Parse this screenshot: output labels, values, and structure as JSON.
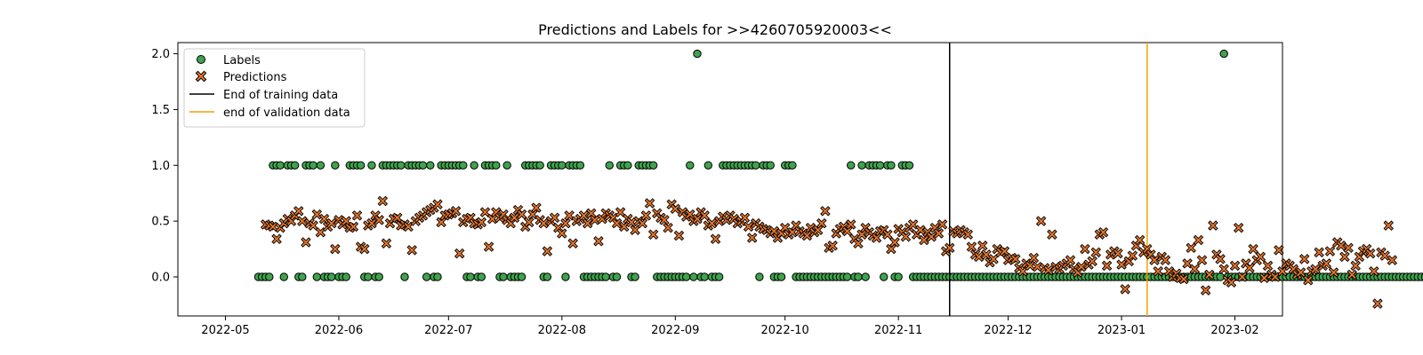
{
  "chart_data": {
    "type": "scatter",
    "title": "Predictions and Labels for >>4260705920003<<",
    "xlabel": "",
    "ylabel": "",
    "x_range": [
      "2022-04-18",
      "2023-02-14"
    ],
    "ylim": [
      -0.35,
      2.1
    ],
    "x_ticks": [
      "2022-05",
      "2022-06",
      "2022-07",
      "2022-08",
      "2022-09",
      "2022-10",
      "2022-11",
      "2022-12",
      "2023-01",
      "2023-02"
    ],
    "x_tick_dates": [
      "2022-05-01",
      "2022-06-01",
      "2022-07-01",
      "2022-08-01",
      "2022-09-01",
      "2022-10-01",
      "2022-11-01",
      "2022-12-01",
      "2023-01-01",
      "2023-02-01"
    ],
    "y_ticks": [
      "0.0",
      "0.5",
      "1.0",
      "1.5",
      "2.0"
    ],
    "y_tick_values": [
      0.0,
      0.5,
      1.0,
      1.5,
      2.0
    ],
    "grid": false,
    "legend_position": "top-left",
    "series": [
      {
        "name": "Labels",
        "marker": "circle",
        "color": "#3fa34d",
        "edge": "#000000",
        "start": "2022-05-10",
        "values": [
          0,
          0,
          0,
          0,
          1,
          1,
          1,
          0,
          1,
          1,
          1,
          0,
          0,
          1,
          1,
          1,
          0,
          1,
          0,
          0,
          0,
          1,
          0,
          0,
          0,
          1,
          1,
          1,
          1,
          0,
          0,
          1,
          0,
          0,
          1,
          1,
          1,
          1,
          1,
          1,
          0,
          1,
          1,
          1,
          1,
          1,
          0,
          1,
          0,
          0,
          1,
          1,
          1,
          1,
          1,
          1,
          1,
          0,
          0,
          1,
          0,
          0,
          1,
          1,
          1,
          1,
          0,
          0,
          1,
          0,
          0,
          0,
          0,
          1,
          1,
          1,
          1,
          1,
          0,
          0,
          1,
          1,
          1,
          1,
          0,
          1,
          1,
          1,
          1,
          0,
          0,
          0,
          0,
          0,
          0,
          0,
          1,
          0,
          0,
          1,
          1,
          1,
          0,
          0,
          1,
          1,
          1,
          1,
          1,
          0,
          0,
          0,
          0,
          0,
          0,
          0,
          0,
          0,
          1,
          0,
          2,
          0,
          0,
          1,
          0,
          0,
          0,
          1,
          1,
          1,
          1,
          1,
          1,
          1,
          1,
          1,
          1,
          0,
          1,
          1,
          1,
          0,
          0,
          0,
          1,
          1,
          1,
          0,
          0,
          0,
          0,
          0,
          0,
          0,
          0,
          0,
          0,
          0,
          0,
          0,
          0,
          0,
          1,
          0,
          0,
          1,
          0,
          1,
          1,
          1,
          1,
          0,
          1,
          1,
          0,
          0,
          1,
          1,
          1,
          0,
          0,
          0,
          0,
          0,
          0,
          0,
          0,
          0,
          0,
          0,
          0,
          0,
          0,
          0,
          0,
          0,
          0,
          0,
          0,
          0,
          0,
          0,
          0,
          0,
          0,
          0,
          0,
          0,
          0,
          0,
          0,
          0,
          0,
          0,
          0,
          0,
          0,
          0,
          0,
          0,
          0,
          0,
          0,
          0,
          0,
          0,
          0,
          0,
          0,
          0,
          0,
          0,
          0,
          0,
          0,
          0,
          0,
          0,
          0,
          0,
          0,
          0,
          0,
          0,
          0,
          0,
          0,
          0,
          0,
          0,
          0,
          0,
          0,
          0,
          0,
          0,
          0,
          0,
          0,
          0,
          0,
          0,
          0,
          0,
          2,
          0,
          0,
          0,
          0,
          0,
          0,
          0,
          0,
          0,
          0,
          0,
          0,
          0,
          0,
          0,
          0,
          0,
          0,
          0,
          0,
          0,
          0,
          0,
          0,
          0,
          0,
          0,
          0,
          0,
          0,
          0,
          0,
          0,
          0,
          0,
          0,
          0,
          0,
          0,
          0,
          0,
          0,
          0,
          0,
          0,
          0,
          0,
          0,
          0,
          0,
          0,
          0,
          0,
          0,
          0,
          0,
          0,
          0,
          0,
          0,
          0,
          0,
          0,
          0,
          0,
          0,
          0,
          0,
          0,
          0,
          0,
          0,
          0,
          0,
          0,
          0,
          0,
          0,
          0,
          0,
          0,
          0,
          0,
          0,
          0,
          0,
          0,
          0,
          0,
          0,
          0,
          0,
          0,
          0,
          0,
          0,
          0,
          0,
          0,
          0,
          0,
          0,
          0,
          0,
          0,
          0,
          0,
          0,
          0,
          0,
          0,
          0,
          0,
          0,
          0,
          0,
          0,
          0,
          0,
          0,
          0,
          0,
          0,
          0,
          0,
          0,
          0
        ]
      },
      {
        "name": "Predictions",
        "marker": "x",
        "color": "#e8762b",
        "edge": "#000000",
        "start": "2022-05-12",
        "values": [
          0.47,
          0.46,
          0.45,
          0.34,
          0.44,
          0.48,
          0.52,
          0.5,
          0.55,
          0.59,
          0.5,
          0.31,
          0.48,
          0.46,
          0.56,
          0.4,
          0.52,
          0.45,
          0.48,
          0.25,
          0.51,
          0.47,
          0.5,
          0.44,
          0.45,
          0.55,
          0.27,
          0.25,
          0.46,
          0.48,
          0.55,
          0.51,
          0.68,
          0.3,
          0.48,
          0.52,
          0.53,
          0.46,
          0.47,
          0.45,
          0.24,
          0.5,
          0.53,
          0.55,
          0.58,
          0.6,
          0.62,
          0.65,
          0.49,
          0.55,
          0.56,
          0.57,
          0.59,
          0.21,
          0.49,
          0.52,
          0.53,
          0.48,
          0.47,
          0.49,
          0.58,
          0.27,
          0.52,
          0.58,
          0.53,
          0.56,
          0.51,
          0.48,
          0.53,
          0.6,
          0.56,
          0.45,
          0.49,
          0.56,
          0.62,
          0.51,
          0.48,
          0.23,
          0.5,
          0.53,
          0.44,
          0.39,
          0.48,
          0.55,
          0.3,
          0.5,
          0.52,
          0.55,
          0.48,
          0.57,
          0.51,
          0.32,
          0.52,
          0.57,
          0.55,
          0.53,
          0.48,
          0.58,
          0.45,
          0.52,
          0.49,
          0.42,
          0.5,
          0.48,
          0.55,
          0.66,
          0.38,
          0.57,
          0.53,
          0.51,
          0.44,
          0.65,
          0.61,
          0.37,
          0.58,
          0.54,
          0.56,
          0.5,
          0.52,
          0.58,
          0.55,
          0.46,
          0.48,
          0.34,
          0.5,
          0.54,
          0.51,
          0.55,
          0.52,
          0.48,
          0.5,
          0.53,
          0.45,
          0.35,
          0.48,
          0.45,
          0.43,
          0.42,
          0.39,
          0.41,
          0.35,
          0.39,
          0.44,
          0.38,
          0.4,
          0.46,
          0.41,
          0.39,
          0.37,
          0.44,
          0.4,
          0.42,
          0.48,
          0.59,
          0.26,
          0.28,
          0.39,
          0.43,
          0.45,
          0.41,
          0.47,
          0.34,
          0.3,
          0.38,
          0.44,
          0.4,
          0.37,
          0.35,
          0.41,
          0.42,
          0.38,
          0.25,
          0.31,
          0.43,
          0.4,
          0.36,
          0.44,
          0.47,
          0.38,
          0.42,
          0.33,
          0.4,
          0.36,
          0.44,
          0.39,
          0.47,
          0.23,
          0.26,
          0.41,
          0.39,
          0.42,
          0.4,
          0.38,
          0.27,
          0.2,
          0.18,
          0.28,
          0.2,
          0.13,
          0.16,
          0.25,
          0.22,
          0.23,
          0.15,
          0.17,
          0.16,
          0.08,
          0.05,
          0.12,
          0.1,
          0.17,
          0.09,
          0.5,
          0.08,
          0.06,
          0.38,
          0.09,
          0.07,
          0.1,
          0.12,
          0.15,
          0.07,
          0.04,
          0.09,
          0.25,
          0.11,
          0.14,
          0.22,
          0.38,
          0.4,
          0.1,
          0.2,
          0.23,
          0.21,
          0.11,
          -0.11,
          0.14,
          0.19,
          0.28,
          0.33,
          0.22,
          0.25,
          0.2,
          0.15,
          0.05,
          0.18,
          0.15,
          0.05,
          0.0,
          0.03,
          -0.01,
          -0.02,
          0.12,
          0.26,
          0.07,
          0.33,
          0.15,
          -0.12,
          0.02,
          0.46,
          0.2,
          0.16,
          0.07,
          -0.03,
          -0.05,
          0.1,
          0.44,
          0.0,
          0.12,
          0.08,
          0.25,
          0.15,
          0.18,
          -0.01,
          0.1,
          0.02,
          0.0,
          0.24,
          0.05,
          0.12,
          0.1,
          0.07,
          0.02,
          0.04,
          0.16,
          -0.03,
          0.05,
          0.07,
          0.22,
          0.1,
          0.12,
          0.23,
          0.04,
          0.31,
          0.28,
          0.18,
          0.26,
          0.02,
          0.1,
          0.18,
          0.23,
          0.25,
          0.21,
          0.05,
          -0.24,
          0.22,
          0.19,
          0.46,
          0.15
        ]
      }
    ],
    "vlines": [
      {
        "name": "End of training data",
        "date": "2022-11-15",
        "color": "#000000"
      },
      {
        "name": "end of validation data",
        "date": "2023-01-08",
        "color": "#f5a000"
      }
    ],
    "legend": [
      "Labels",
      "Predictions",
      "End of training data",
      "end of validation data"
    ]
  }
}
